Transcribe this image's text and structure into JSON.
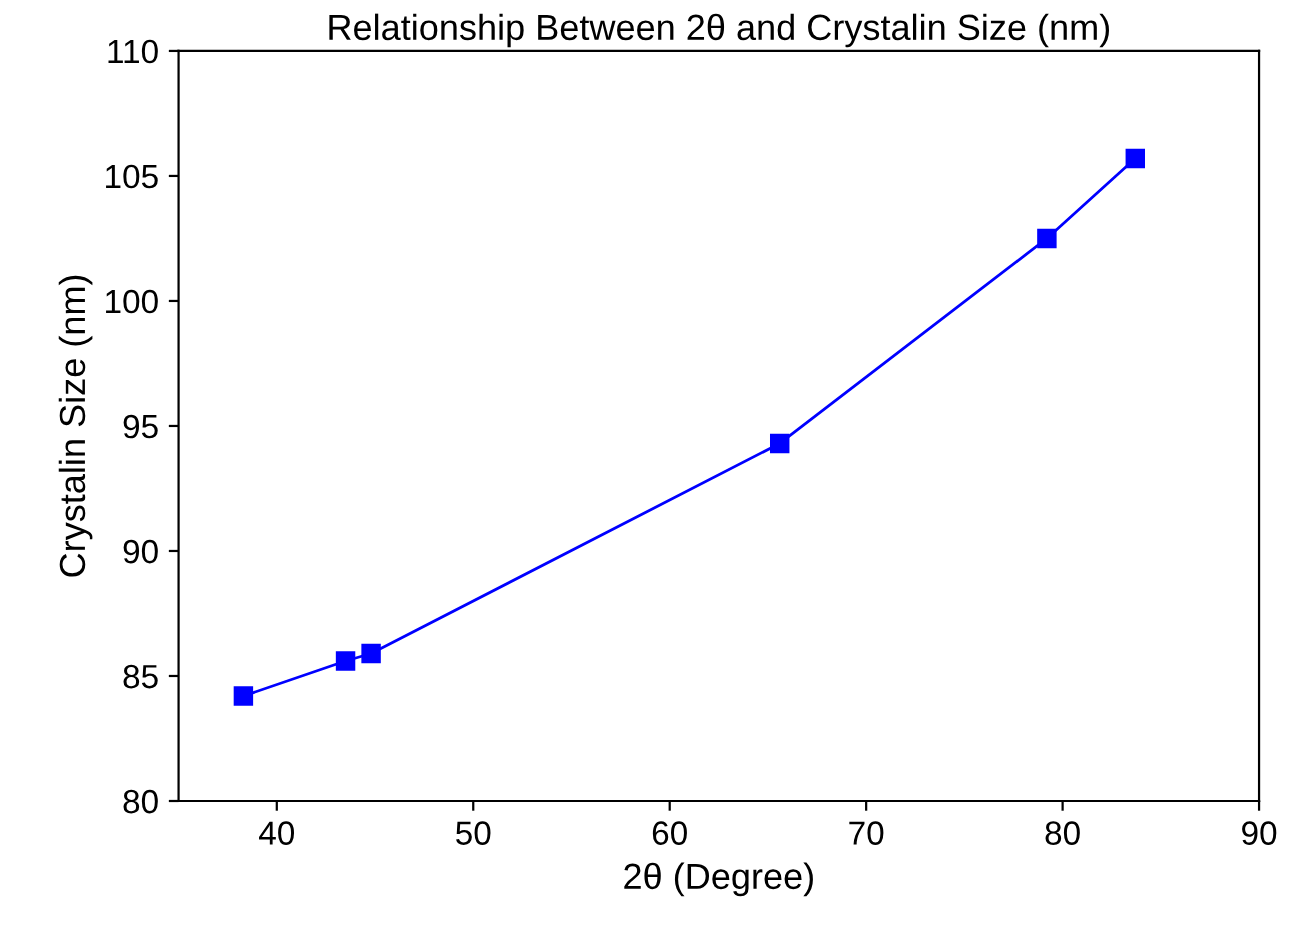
{
  "chart_data": {
    "type": "line",
    "title": "Relationship Between 2θ and Crystalin Size (nm)",
    "xlabel": "2θ (Degree)",
    "ylabel": "Crystalin Size (nm)",
    "x": [
      38.3,
      43.5,
      44.8,
      65.6,
      79.2,
      83.7
    ],
    "series": [
      {
        "color": "#0000ff",
        "values": [
          84.2,
          85.6,
          85.9,
          94.3,
          102.5,
          105.7
        ]
      }
    ],
    "xlim": [
      35,
      90
    ],
    "xticks": [
      40,
      50,
      60,
      70,
      80,
      90
    ],
    "ylim": [
      80,
      110
    ],
    "yticks": [
      80,
      85,
      90,
      95,
      100,
      105,
      110
    ],
    "marker": "square",
    "line_style": "solid",
    "grid": false,
    "legend": false
  }
}
